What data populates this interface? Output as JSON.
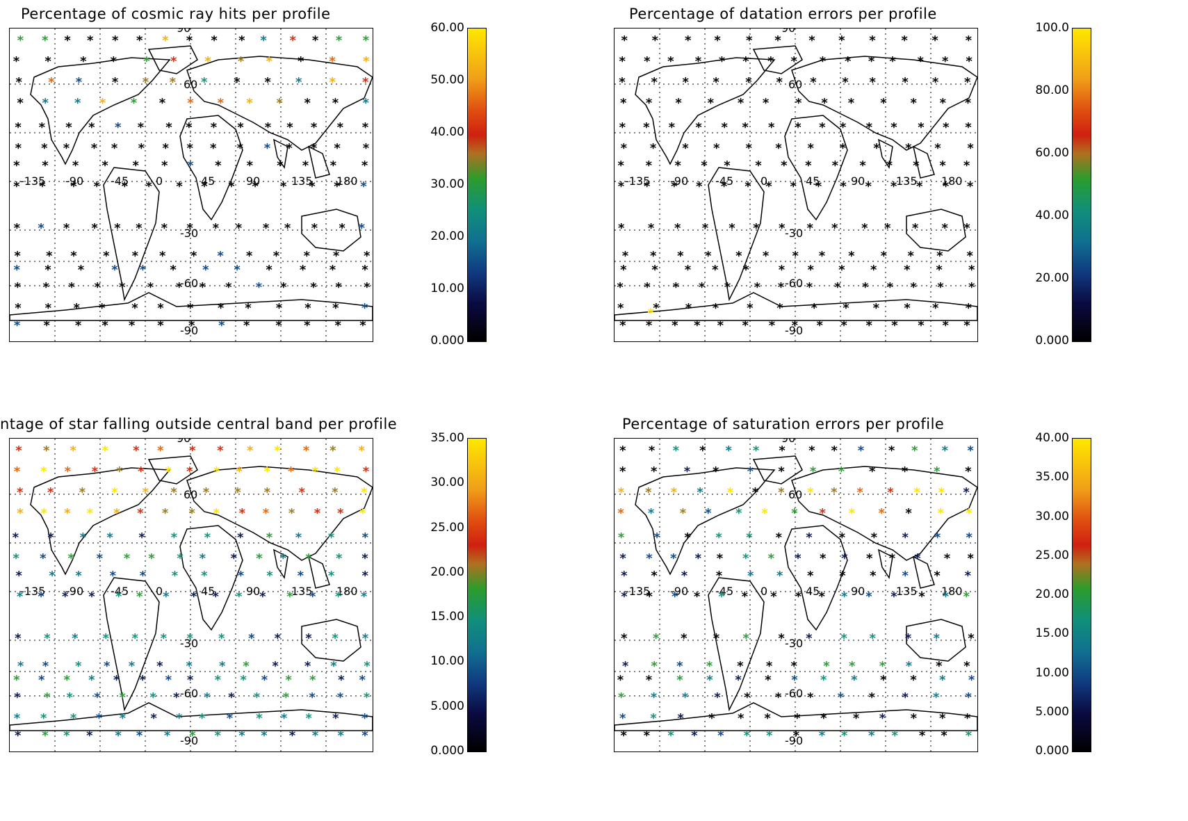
{
  "panels": [
    {
      "id": "cosmic",
      "title": "Percentage of cosmic ray hits per profile",
      "colorbar_ticks": [
        "60.00",
        "50.00",
        "40.00",
        "30.00",
        "20.00",
        "10.00",
        "0.000"
      ],
      "colorbar_max": 60
    },
    {
      "id": "datation",
      "title": "Percentage of datation errors per profile",
      "colorbar_ticks": [
        "100.0",
        "80.00",
        "60.00",
        "40.00",
        "20.00",
        "0.000"
      ],
      "colorbar_max": 100
    },
    {
      "id": "outside",
      "title": "ntage of star falling outside central band per profile",
      "colorbar_ticks": [
        "35.00",
        "30.00",
        "25.00",
        "20.00",
        "15.00",
        "10.00",
        "5.000",
        "0.000"
      ],
      "colorbar_max": 35
    },
    {
      "id": "saturation",
      "title": "Percentage of saturation errors per profile",
      "colorbar_ticks": [
        "40.00",
        "35.00",
        "30.00",
        "25.00",
        "20.00",
        "15.00",
        "10.00",
        "5.000",
        "0.000"
      ],
      "colorbar_max": 40
    }
  ],
  "map_labels": {
    "lat_top": "90",
    "lat_60": "60",
    "lat_0_lons": [
      "-135",
      "-90",
      "-45",
      "0",
      "45",
      "90",
      "135",
      "180"
    ],
    "lat_m30": "-30",
    "lat_m60": "-60",
    "lat_bottom": "-90"
  },
  "colormap": "rainbow (black-blue-green-red-yellow)",
  "marker_symbol": "*"
}
